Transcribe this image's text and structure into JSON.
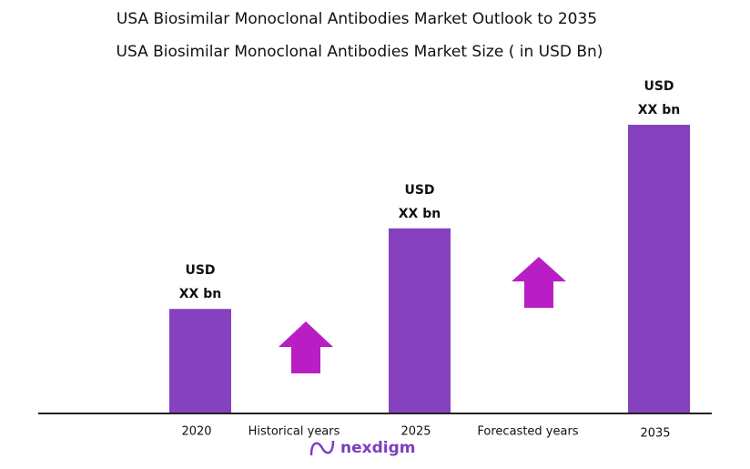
{
  "chart_data": {
    "type": "bar",
    "title": "USA  Biosimilar Monoclonal Antibodies Market Outlook to 2035",
    "subtitle": "USA  Biosimilar Monoclonal Antibodies  Market Size  ( in USD Bn)",
    "categories": [
      "2020",
      "2025",
      "2035"
    ],
    "values": [
      36,
      64,
      100
    ],
    "color": "#8641bf",
    "bar_labels": [
      [
        "USD",
        "XX bn"
      ],
      [
        "USD",
        "XX bn"
      ],
      [
        "USD",
        "XX bn"
      ]
    ],
    "period_labels": [
      "Historical years",
      "Forecasted years"
    ],
    "brand": "nexdigm"
  }
}
